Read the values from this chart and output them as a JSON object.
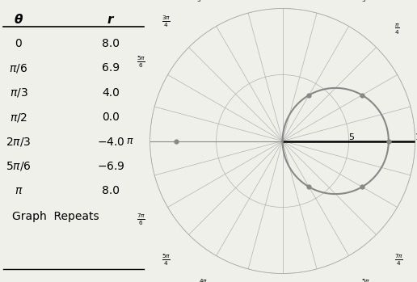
{
  "table_theta": [
    "0",
    "\\pi/6",
    "\\pi/3",
    "\\pi/2",
    "2\\pi/3",
    "5\\pi/6",
    "\\pi"
  ],
  "table_r": [
    "8.0",
    "6.9",
    "4.0",
    "0.0",
    "-4.0",
    "-6.9",
    "8.0"
  ],
  "table_note": "Graph  Repeats",
  "polar_rmax": 10,
  "curve_color": "#888888",
  "grid_color": "#aaaaaa",
  "background_color": "#f0f0eb",
  "highlight_points_theta": [
    0,
    0.5236,
    1.0472,
    1.5708,
    2.0944,
    2.618,
    3.1416
  ],
  "highlight_points_r": [
    8.0,
    6.9,
    4.0,
    0.0,
    -4.0,
    -6.9,
    8.0
  ],
  "fig_width": 5.16,
  "fig_height": 3.49
}
